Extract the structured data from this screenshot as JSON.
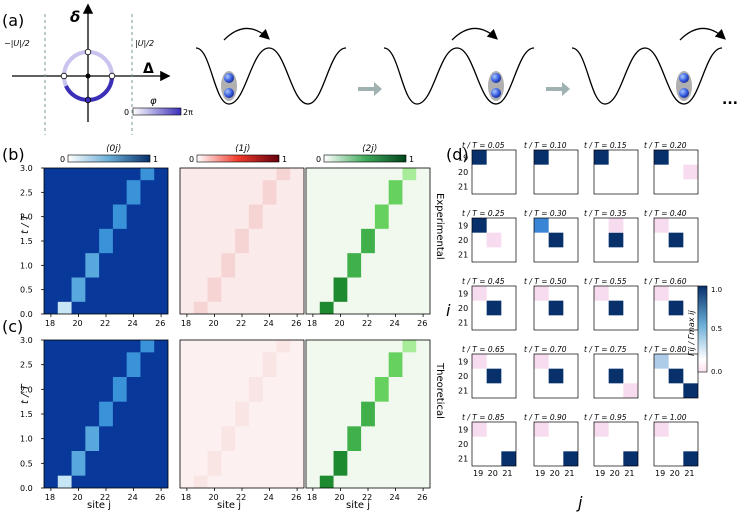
{
  "panels": {
    "a": "(a)",
    "b": "(b)",
    "c": "(c)",
    "d": "(d)"
  },
  "panel_a": {
    "delta_label": "δ",
    "Delta_label": "Δ",
    "neg_bound": "−|U|/2",
    "pos_bound": "|U|/2",
    "phi_label": "φ",
    "phi_min": "0",
    "phi_max": "2π",
    "ellipsis": "..."
  },
  "colorbars": [
    {
      "label": "⟨0j⟩",
      "min": "0",
      "max": "1",
      "color_low": "#ffffff",
      "color_high": "#08306b"
    },
    {
      "label": "⟨1j⟩",
      "min": "0",
      "max": "1",
      "color_low": "#ffffff",
      "color_high": "#67000d"
    },
    {
      "label": "⟨2j⟩",
      "min": "0",
      "max": "1",
      "color_low": "#ffffff",
      "color_high": "#00441b"
    }
  ],
  "row_labels": {
    "experimental": "Experimental",
    "theoretical": "Theoretical"
  },
  "axes": {
    "ylabel": "t / T",
    "xlabel": "site j",
    "yticks": [
      "0.0",
      "0.5",
      "1.0",
      "1.5",
      "2.0",
      "2.5",
      "3.0"
    ],
    "xticks": [
      "18",
      "20",
      "22",
      "24",
      "26"
    ]
  },
  "panel_d": {
    "titles": [
      "t / T = 0.05",
      "t / T = 0.10",
      "t / T = 0.15",
      "t / T = 0.20",
      "t / T = 0.25",
      "t / T = 0.30",
      "t / T = 0.35",
      "t / T = 0.40",
      "t / T = 0.45",
      "t / T = 0.50",
      "t / T = 0.55",
      "t / T = 0.60",
      "t / T = 0.65",
      "t / T = 0.70",
      "t / T = 0.75",
      "t / T = 0.80",
      "t / T = 0.85",
      "t / T = 0.90",
      "t / T = 0.95",
      "t / T = 1.00"
    ],
    "row_ticks": [
      "19",
      "20",
      "21"
    ],
    "col_ticks": [
      "19",
      "20",
      "21"
    ],
    "ylabel": "i",
    "xlabel": "j",
    "cbar_label": "Γij / Γmax ij",
    "cbar_ticks": [
      "1.0",
      "0.5",
      "0.0"
    ]
  },
  "chart_data": [
    {
      "type": "heatmap",
      "title": "⟨0j⟩ Experimental",
      "xlabel": "site j",
      "ylabel": "t / T",
      "x_range": [
        17.5,
        26.5
      ],
      "y_range": [
        0,
        3.0
      ],
      "description_values": "occupation ~1 everywhere except along a staircase from site 19 at t/T=0 to site 25 at t/T=3",
      "staircase": [
        {
          "site": 19,
          "t": [
            0,
            0.25
          ]
        },
        {
          "site": 20,
          "t": [
            0.25,
            0.75
          ]
        },
        {
          "site": 21,
          "t": [
            0.75,
            1.25
          ]
        },
        {
          "site": 22,
          "t": [
            1.25,
            1.75
          ]
        },
        {
          "site": 23,
          "t": [
            1.75,
            2.25
          ]
        },
        {
          "site": 24,
          "t": [
            2.25,
            2.75
          ]
        },
        {
          "site": 25,
          "t": [
            2.75,
            3.0
          ]
        }
      ]
    },
    {
      "type": "heatmap",
      "title": "⟨0j⟩ Theoretical",
      "xlabel": "site j",
      "ylabel": "t / T",
      "x_range": [
        17.5,
        26.5
      ],
      "y_range": [
        0,
        3.0
      ],
      "staircase": [
        {
          "site": 19,
          "t": [
            0,
            0.25
          ]
        },
        {
          "site": 20,
          "t": [
            0.25,
            0.75
          ]
        },
        {
          "site": 21,
          "t": [
            0.75,
            1.25
          ]
        },
        {
          "site": 22,
          "t": [
            1.25,
            1.75
          ]
        },
        {
          "site": 23,
          "t": [
            1.75,
            2.25
          ]
        },
        {
          "site": 24,
          "t": [
            2.25,
            2.75
          ]
        },
        {
          "site": 25,
          "t": [
            2.75,
            3.0
          ]
        }
      ]
    },
    {
      "type": "heatmap",
      "title": "⟨2j⟩",
      "staircase_values": [
        {
          "site": 19,
          "t": [
            0,
            0.25
          ],
          "value": 0.9
        },
        {
          "site": 20,
          "t": [
            0.25,
            0.75
          ],
          "value": 0.85
        },
        {
          "site": 21,
          "t": [
            0.75,
            1.25
          ],
          "value": 0.8
        },
        {
          "site": 22,
          "t": [
            1.25,
            1.75
          ],
          "value": 0.75
        },
        {
          "site": 23,
          "t": [
            1.75,
            2.25
          ],
          "value": 0.7
        },
        {
          "site": 24,
          "t": [
            2.25,
            2.75
          ],
          "value": 0.6
        },
        {
          "site": 25,
          "t": [
            2.75,
            3.0
          ],
          "value": 0.45
        }
      ]
    },
    {
      "type": "heatmap",
      "title": "Γij / Γmax ij",
      "sites": [
        19,
        20,
        21
      ],
      "frames": [
        {
          "t": 0.05,
          "cells": [
            [
              19,
              19,
              1.0
            ]
          ]
        },
        {
          "t": 0.1,
          "cells": [
            [
              19,
              19,
              1.0
            ]
          ]
        },
        {
          "t": 0.15,
          "cells": [
            [
              19,
              19,
              1.0
            ]
          ]
        },
        {
          "t": 0.2,
          "cells": [
            [
              19,
              19,
              1.0
            ],
            [
              20,
              21,
              0.05
            ]
          ]
        },
        {
          "t": 0.25,
          "cells": [
            [
              19,
              19,
              1.0
            ],
            [
              20,
              20,
              0.1
            ]
          ]
        },
        {
          "t": 0.3,
          "cells": [
            [
              19,
              19,
              0.7
            ],
            [
              20,
              20,
              1.0
            ]
          ]
        },
        {
          "t": 0.35,
          "cells": [
            [
              20,
              20,
              1.0
            ],
            [
              19,
              20,
              0.05
            ]
          ]
        },
        {
          "t": 0.4,
          "cells": [
            [
              20,
              20,
              1.0
            ],
            [
              19,
              19,
              0.15
            ]
          ]
        },
        {
          "t": 0.45,
          "cells": [
            [
              20,
              20,
              1.0
            ],
            [
              19,
              19,
              0.05
            ]
          ]
        },
        {
          "t": 0.5,
          "cells": [
            [
              20,
              20,
              1.0
            ],
            [
              19,
              19,
              0.05
            ]
          ]
        },
        {
          "t": 0.55,
          "cells": [
            [
              20,
              20,
              1.0
            ],
            [
              19,
              19,
              0.05
            ]
          ]
        },
        {
          "t": 0.6,
          "cells": [
            [
              20,
              20,
              1.0
            ],
            [
              19,
              19,
              0.05
            ]
          ]
        },
        {
          "t": 0.65,
          "cells": [
            [
              20,
              20,
              1.0
            ],
            [
              19,
              19,
              0.08
            ]
          ]
        },
        {
          "t": 0.7,
          "cells": [
            [
              20,
              20,
              1.0
            ],
            [
              19,
              19,
              0.05
            ]
          ]
        },
        {
          "t": 0.75,
          "cells": [
            [
              20,
              20,
              1.0
            ],
            [
              21,
              21,
              0.08
            ]
          ]
        },
        {
          "t": 0.8,
          "cells": [
            [
              19,
              19,
              0.3
            ],
            [
              20,
              20,
              1.0
            ],
            [
              21,
              21,
              1.0
            ]
          ]
        },
        {
          "t": 0.85,
          "cells": [
            [
              21,
              21,
              1.0
            ],
            [
              19,
              19,
              0.08
            ]
          ]
        },
        {
          "t": 0.9,
          "cells": [
            [
              21,
              21,
              1.0
            ],
            [
              19,
              19,
              0.05
            ]
          ]
        },
        {
          "t": 0.95,
          "cells": [
            [
              21,
              21,
              1.0
            ],
            [
              19,
              19,
              0.05
            ]
          ]
        },
        {
          "t": 1.0,
          "cells": [
            [
              21,
              21,
              1.0
            ],
            [
              19,
              19,
              0.05
            ]
          ]
        }
      ]
    }
  ]
}
